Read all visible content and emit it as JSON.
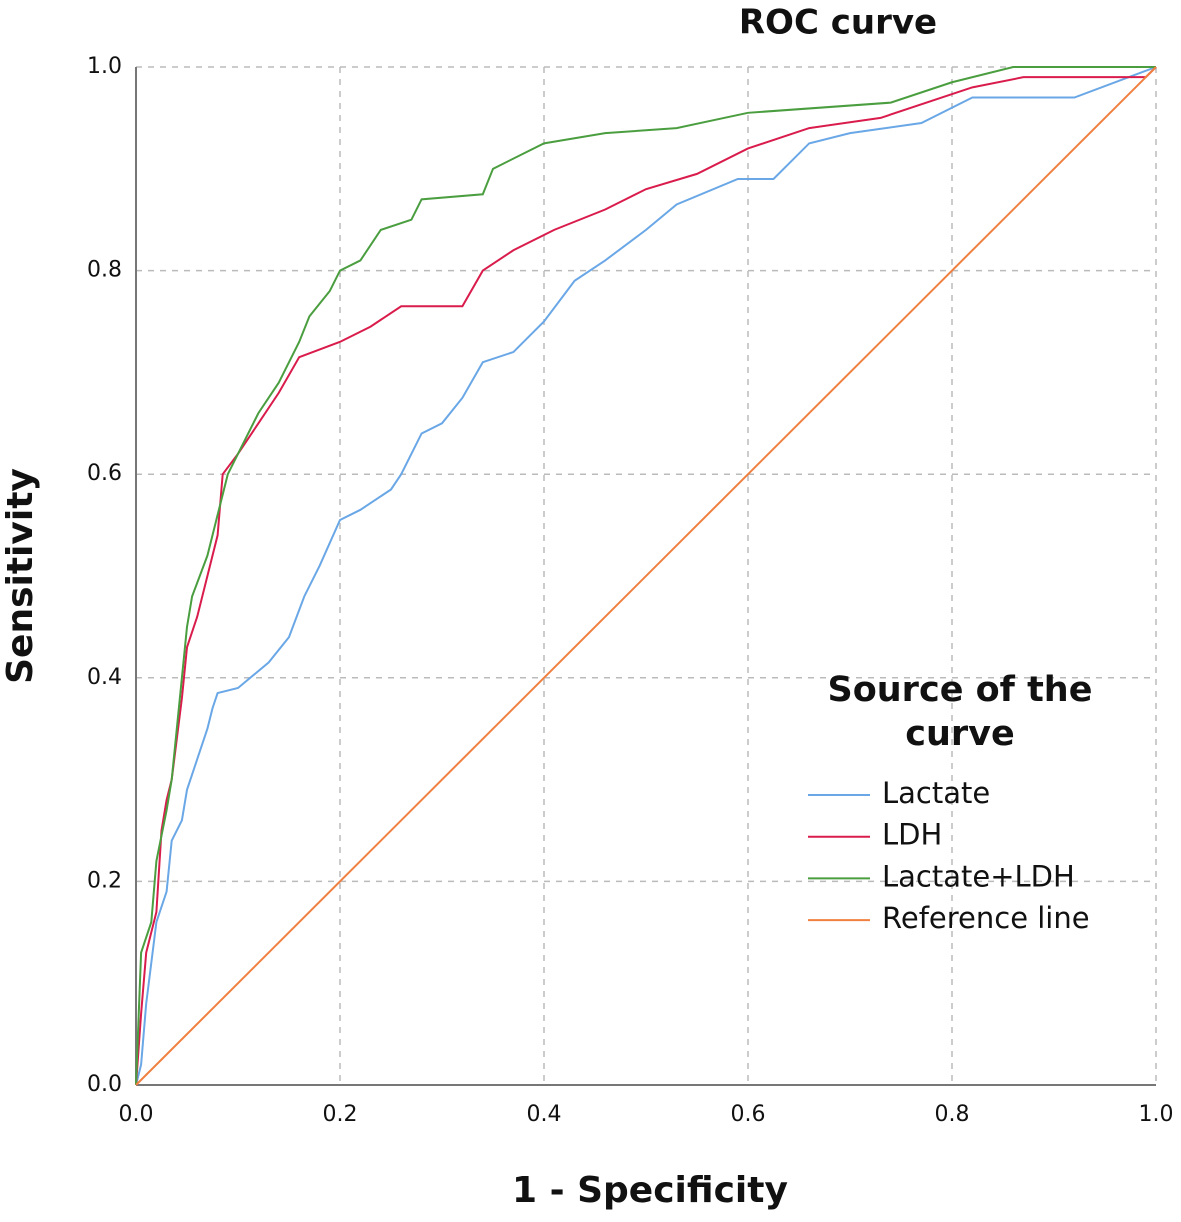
{
  "chart_data": {
    "type": "line",
    "title": "ROC curve",
    "x_label": "1 - Specificity",
    "y_label": "Sensitivity",
    "legend_title": "Source of the curve",
    "grid": true,
    "xlim": [
      0,
      1
    ],
    "ylim": [
      0,
      1
    ],
    "xticks": [
      {
        "value": 0,
        "label": "0.0"
      },
      0.2,
      0.4,
      0.6,
      0.8,
      {
        "value": 1,
        "label": "1.0"
      }
    ],
    "yticks": [
      {
        "value": 0,
        "label": "0.0"
      },
      0.2,
      0.4,
      0.6,
      0.8,
      {
        "value": 1,
        "label": "1.0"
      }
    ],
    "series": [
      {
        "name": "Lactate",
        "color": "#6aa7e6",
        "x": [
          0,
          0.005,
          0.01,
          0.015,
          0.02,
          0.03,
          0.035,
          0.045,
          0.05,
          0.06,
          0.07,
          0.075,
          0.08,
          0.1,
          0.13,
          0.15,
          0.165,
          0.18,
          0.2,
          0.22,
          0.25,
          0.26,
          0.28,
          0.3,
          0.32,
          0.34,
          0.37,
          0.4,
          0.43,
          0.46,
          0.5,
          0.53,
          0.59,
          0.625,
          0.66,
          0.7,
          0.77,
          0.82,
          0.92,
          1
        ],
        "values": [
          0,
          0.02,
          0.08,
          0.12,
          0.16,
          0.19,
          0.24,
          0.26,
          0.29,
          0.32,
          0.35,
          0.37,
          0.385,
          0.39,
          0.415,
          0.44,
          0.48,
          0.51,
          0.555,
          0.565,
          0.585,
          0.6,
          0.64,
          0.65,
          0.675,
          0.71,
          0.72,
          0.75,
          0.79,
          0.81,
          0.84,
          0.865,
          0.89,
          0.89,
          0.925,
          0.935,
          0.945,
          0.97,
          0.97,
          1
        ]
      },
      {
        "name": "LDH",
        "color": "#d91c4c",
        "x": [
          0,
          0.005,
          0.01,
          0.02,
          0.025,
          0.03,
          0.035,
          0.04,
          0.045,
          0.05,
          0.06,
          0.07,
          0.08,
          0.085,
          0.1,
          0.12,
          0.14,
          0.16,
          0.2,
          0.23,
          0.26,
          0.32,
          0.34,
          0.37,
          0.41,
          0.46,
          0.5,
          0.55,
          0.6,
          0.66,
          0.73,
          0.82,
          0.87,
          0.99,
          1
        ],
        "values": [
          0,
          0.07,
          0.13,
          0.17,
          0.25,
          0.28,
          0.3,
          0.34,
          0.38,
          0.43,
          0.46,
          0.5,
          0.54,
          0.6,
          0.62,
          0.65,
          0.68,
          0.715,
          0.73,
          0.745,
          0.765,
          0.765,
          0.8,
          0.82,
          0.84,
          0.86,
          0.88,
          0.895,
          0.92,
          0.94,
          0.95,
          0.98,
          0.99,
          0.99,
          1
        ]
      },
      {
        "name": "Lactate+LDH",
        "color": "#4a9e3f",
        "x": [
          0,
          0.005,
          0.015,
          0.02,
          0.03,
          0.035,
          0.04,
          0.05,
          0.055,
          0.07,
          0.08,
          0.09,
          0.1,
          0.12,
          0.14,
          0.16,
          0.17,
          0.19,
          0.2,
          0.22,
          0.24,
          0.27,
          0.28,
          0.34,
          0.35,
          0.38,
          0.4,
          0.46,
          0.53,
          0.6,
          0.74,
          0.8,
          0.86,
          1
        ],
        "values": [
          0,
          0.13,
          0.16,
          0.22,
          0.27,
          0.3,
          0.35,
          0.45,
          0.48,
          0.52,
          0.56,
          0.6,
          0.62,
          0.66,
          0.69,
          0.73,
          0.755,
          0.78,
          0.8,
          0.81,
          0.84,
          0.85,
          0.87,
          0.875,
          0.9,
          0.915,
          0.925,
          0.935,
          0.94,
          0.955,
          0.965,
          0.985,
          1,
          1
        ]
      },
      {
        "name": "Reference line",
        "color": "#f08040",
        "x": [
          0,
          1
        ],
        "values": [
          0,
          1
        ]
      }
    ]
  }
}
